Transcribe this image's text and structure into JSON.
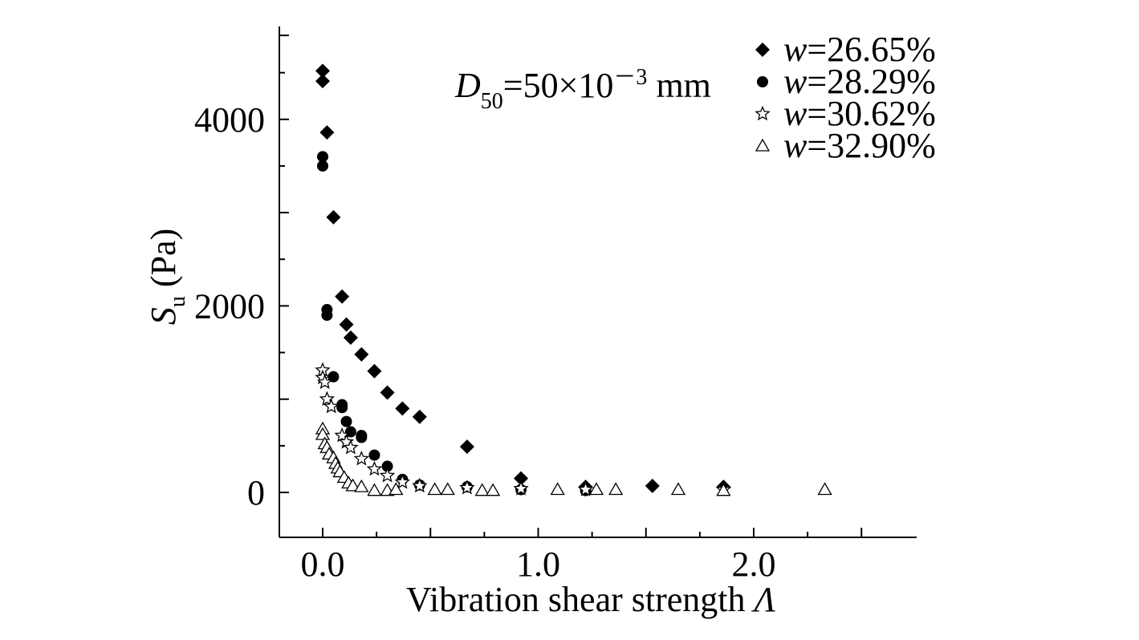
{
  "chart_data": {
    "type": "scatter",
    "title": "",
    "xlabel": "Vibration shear strength",
    "xlabel_symbol": "Λ",
    "ylabel_symbol": "S",
    "ylabel_subscript": "u",
    "ylabel_unit": "(Pa)",
    "xlim": [
      -0.2,
      2.7
    ],
    "ylim": [
      -480,
      5000
    ],
    "x_ticks": [
      0.0,
      1.0,
      2.0
    ],
    "x_tick_labels": [
      "0.0",
      "1.0",
      "2.0"
    ],
    "y_ticks": [
      0,
      2000,
      4000
    ],
    "y_tick_labels": [
      "0",
      "2000",
      "4000"
    ],
    "grid": false,
    "legend_position": "top-right",
    "annotation": {
      "symbol": "D",
      "subscript": "50",
      "text": "=50×10",
      "exponent": "－3",
      "unit": "mm"
    },
    "series": [
      {
        "name": "w=26.65%",
        "name_symbol": "w",
        "name_rest": "=26.65%",
        "marker": "diamond",
        "points": [
          [
            0.0,
            4520
          ],
          [
            0.0,
            4410
          ],
          [
            0.02,
            3860
          ],
          [
            0.05,
            2950
          ],
          [
            0.09,
            2100
          ],
          [
            0.11,
            1800
          ],
          [
            0.13,
            1660
          ],
          [
            0.18,
            1480
          ],
          [
            0.24,
            1300
          ],
          [
            0.3,
            1070
          ],
          [
            0.37,
            900
          ],
          [
            0.45,
            810
          ],
          [
            0.67,
            490
          ],
          [
            0.92,
            150
          ],
          [
            1.22,
            60
          ],
          [
            1.53,
            70
          ],
          [
            1.86,
            60
          ]
        ]
      },
      {
        "name": "w=28.29%",
        "name_symbol": "w",
        "name_rest": "=28.29%",
        "marker": "circle",
        "points": [
          [
            0.0,
            3600
          ],
          [
            0.0,
            3500
          ],
          [
            0.02,
            1960
          ],
          [
            0.02,
            1900
          ],
          [
            0.05,
            1240
          ],
          [
            0.09,
            940
          ],
          [
            0.09,
            910
          ],
          [
            0.11,
            760
          ],
          [
            0.13,
            650
          ],
          [
            0.18,
            610
          ],
          [
            0.18,
            590
          ],
          [
            0.24,
            400
          ],
          [
            0.3,
            280
          ],
          [
            0.37,
            140
          ],
          [
            0.45,
            80
          ],
          [
            0.67,
            60
          ],
          [
            0.92,
            30
          ],
          [
            1.22,
            20
          ]
        ]
      },
      {
        "name": "w=30.62%",
        "name_symbol": "w",
        "name_rest": "=30.62%",
        "marker": "star",
        "points": [
          [
            0.0,
            1310
          ],
          [
            0.0,
            1230
          ],
          [
            0.01,
            1180
          ],
          [
            0.02,
            1000
          ],
          [
            0.04,
            920
          ],
          [
            0.09,
            610
          ],
          [
            0.11,
            540
          ],
          [
            0.13,
            480
          ],
          [
            0.18,
            360
          ],
          [
            0.24,
            250
          ],
          [
            0.3,
            180
          ],
          [
            0.37,
            110
          ],
          [
            0.45,
            70
          ],
          [
            0.67,
            50
          ],
          [
            0.92,
            40
          ],
          [
            1.22,
            30
          ],
          [
            1.86,
            30
          ]
        ]
      },
      {
        "name": "w=32.90%",
        "name_symbol": "w",
        "name_rest": "=32.90%",
        "marker": "triangle",
        "points": [
          [
            0.0,
            680
          ],
          [
            0.0,
            620
          ],
          [
            0.01,
            520
          ],
          [
            0.02,
            480
          ],
          [
            0.03,
            410
          ],
          [
            0.05,
            370
          ],
          [
            0.06,
            310
          ],
          [
            0.07,
            260
          ],
          [
            0.08,
            220
          ],
          [
            0.1,
            160
          ],
          [
            0.12,
            100
          ],
          [
            0.14,
            70
          ],
          [
            0.18,
            60
          ],
          [
            0.24,
            20
          ],
          [
            0.3,
            20
          ],
          [
            0.34,
            30
          ],
          [
            0.52,
            30
          ],
          [
            0.58,
            30
          ],
          [
            0.74,
            20
          ],
          [
            0.79,
            20
          ],
          [
            1.09,
            30
          ],
          [
            1.27,
            30
          ],
          [
            1.36,
            30
          ],
          [
            1.65,
            30
          ],
          [
            1.86,
            20
          ],
          [
            2.33,
            30
          ]
        ]
      }
    ]
  }
}
